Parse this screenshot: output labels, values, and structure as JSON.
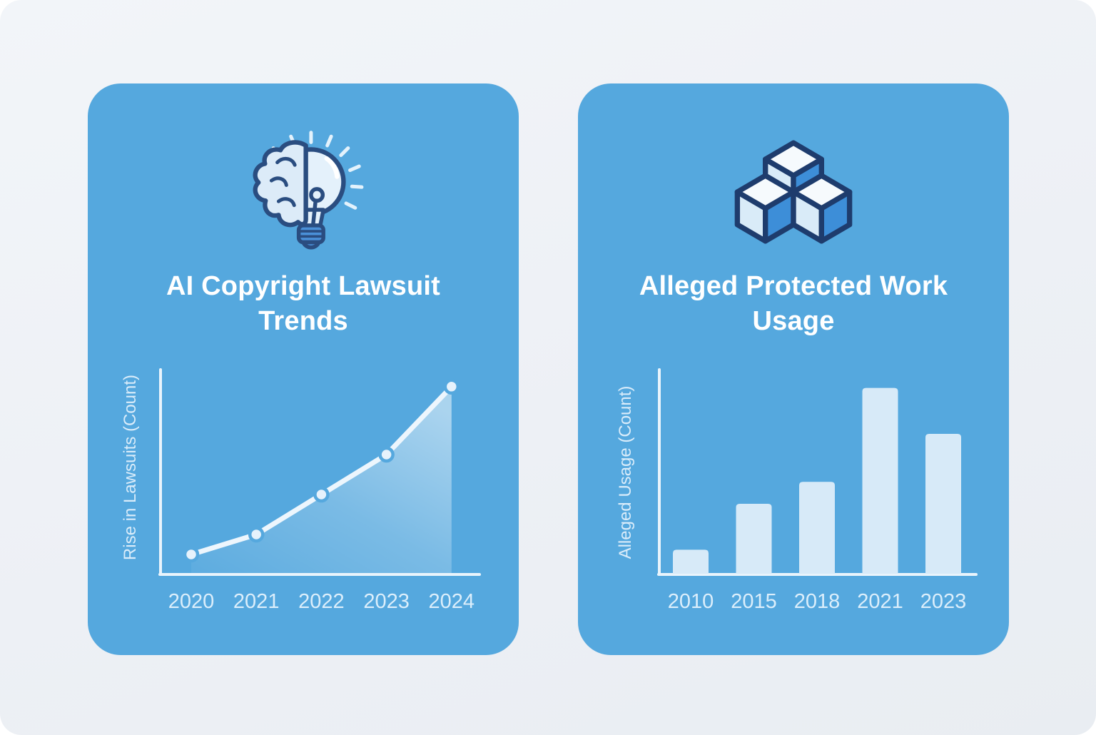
{
  "page": {
    "type": "infographic",
    "background_color": "#eef1f5",
    "card_color": "#55a8de"
  },
  "cards": [
    {
      "title": "AI Copyright Lawsuit Trends",
      "title_line1": "AI Copyright Lawsuit",
      "title_line2": "Trends",
      "icon": "brain-lightbulb-icon"
    },
    {
      "title": "Alleged Protected Work Usage",
      "title_line1": "Alleged Protected Work",
      "title_line2": "Usage",
      "icon": "stacked-cubes-icon"
    }
  ],
  "chart_data": [
    {
      "type": "line",
      "title": "AI Copyright Lawsuit Trends",
      "x": [
        "2020",
        "2021",
        "2022",
        "2023",
        "2024"
      ],
      "values": [
        10,
        20,
        40,
        60,
        94
      ],
      "xlabel": "",
      "ylabel": "Rise in Lawsuits (Count)",
      "ylim": [
        0,
        100
      ],
      "grid": false,
      "legend": "none",
      "markers": true,
      "area_fill": true,
      "line_color": "#edf6fd",
      "marker_color": "#e6f2fc",
      "axis_color": "#e9f4fc",
      "tick_label_color": "#dbeefb"
    },
    {
      "type": "bar",
      "title": "Alleged Protected Work Usage",
      "categories": [
        "2010",
        "2015",
        "2018",
        "2021",
        "2023"
      ],
      "values": [
        12,
        35,
        46,
        93,
        70
      ],
      "xlabel": "",
      "ylabel": "Alleged Usage (Count)",
      "ylim": [
        0,
        100
      ],
      "grid": false,
      "legend": "none",
      "bar_color": "#d7eaf8",
      "axis_color": "#e9f4fc",
      "tick_label_color": "#dbeefb"
    }
  ],
  "icons": {
    "brain_lightbulb": {
      "outline": "#2a4d80",
      "brain_fill": "#dcebf8",
      "bulb_fill": "#e4f1fb",
      "base_fill": "#4a90d8",
      "rays": "#e3f2fc"
    },
    "stacked_cubes": {
      "outline": "#1e3c6d",
      "top_face": "#f6fafd",
      "left_face": "#d9ebf8",
      "right_face": "#3d8ed8"
    }
  }
}
